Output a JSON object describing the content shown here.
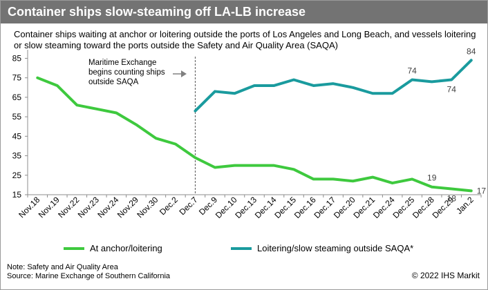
{
  "header": {
    "title": "Container ships slow-steaming off LA-LB increase"
  },
  "subtitle": "Container ships waiting at anchor or loitering outside the ports of Los Angeles and Long Beach, and vessels loitering or slow steaming toward the ports outside the Safety and Air Quality Area (SAQA)",
  "chart_data": {
    "type": "line",
    "categories": [
      "Nov.18",
      "Nov.19",
      "Nov.22",
      "Nov.23",
      "Nov.24",
      "Nov.29",
      "Nov.30",
      "Dec.2",
      "Dec.7",
      "Dec.9",
      "Dec.10",
      "Dec.13",
      "Dec.14",
      "Dec.15",
      "Dec.16",
      "Dec.17",
      "Dec.20",
      "Dec.21",
      "Dec.24",
      "Dec.25",
      "Dec.28",
      "Dec.29",
      "Jan.2"
    ],
    "yticks": [
      15,
      25,
      35,
      45,
      55,
      65,
      75,
      85
    ],
    "ylim": [
      15,
      88
    ],
    "series": [
      {
        "name": "At anchor/loitering",
        "color": "#3ec93e",
        "values": [
          75,
          71,
          61,
          59,
          57,
          51,
          44,
          41,
          34,
          29,
          30,
          30,
          30,
          28,
          23,
          23,
          22,
          24,
          21,
          23,
          19,
          18,
          17
        ]
      },
      {
        "name": "Loitering/slow steaming outside SAQA*",
        "color": "#1a9b9e",
        "values": [
          null,
          null,
          null,
          null,
          null,
          null,
          null,
          null,
          58,
          68,
          67,
          71,
          71,
          74,
          71,
          72,
          70,
          67,
          67,
          74,
          73,
          74,
          84
        ]
      }
    ],
    "data_labels": [
      {
        "series": 1,
        "index": 19,
        "text": "74",
        "pos": "above"
      },
      {
        "series": 1,
        "index": 21,
        "text": "74",
        "pos": "below"
      },
      {
        "series": 1,
        "index": 22,
        "text": "84",
        "pos": "above"
      },
      {
        "series": 0,
        "index": 20,
        "text": "19",
        "pos": "above"
      },
      {
        "series": 0,
        "index": 21,
        "text": "18",
        "pos": "below"
      },
      {
        "series": 0,
        "index": 22,
        "text": "17",
        "pos": "right"
      }
    ],
    "annotation": {
      "lines": [
        "Maritime Exchange",
        "begins counting ships",
        "outside SAQA"
      ],
      "index": 8
    },
    "grid": false,
    "legend_position": "bottom"
  },
  "legend": [
    {
      "label": "At anchor/loitering",
      "color": "#3ec93e"
    },
    {
      "label": "Loitering/slow steaming outside SAQA*",
      "color": "#1a9b9e"
    }
  ],
  "notes": {
    "note": "Note: Safety and Air Quality Area",
    "source": "Source: Marine Exchange of Southern California",
    "copyright": "© 2022 IHS Markit"
  }
}
